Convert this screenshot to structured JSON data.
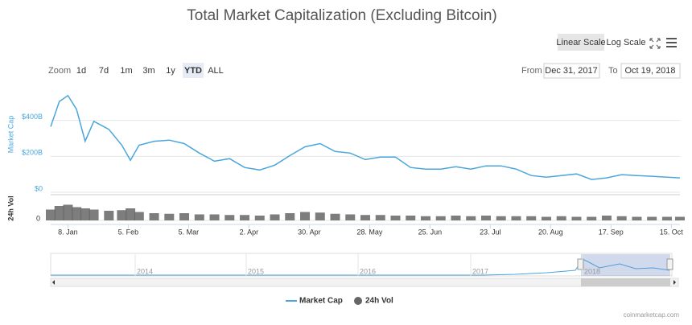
{
  "title": "Total Market Capitalization (Excluding Bitcoin)",
  "scale_buttons": {
    "items": [
      "Linear Scale",
      "Log Scale"
    ],
    "selected": 0
  },
  "zoom": {
    "label": "Zoom",
    "buttons": [
      "1d",
      "7d",
      "1m",
      "3m",
      "1y",
      "YTD",
      "ALL"
    ],
    "selected": 5
  },
  "range": {
    "from_label": "From",
    "from": "Dec 31, 2017",
    "to_label": "To",
    "to": "Oct 19, 2018"
  },
  "chart_data": {
    "type": "line",
    "x": [
      "2017-12-31",
      "2018-01-04",
      "2018-01-08",
      "2018-01-12",
      "2018-01-16",
      "2018-01-20",
      "2018-01-27",
      "2018-02-02",
      "2018-02-06",
      "2018-02-10",
      "2018-02-17",
      "2018-02-24",
      "2018-03-03",
      "2018-03-10",
      "2018-03-17",
      "2018-03-24",
      "2018-03-31",
      "2018-04-07",
      "2018-04-14",
      "2018-04-21",
      "2018-04-28",
      "2018-05-05",
      "2018-05-12",
      "2018-05-19",
      "2018-05-26",
      "2018-06-02",
      "2018-06-09",
      "2018-06-16",
      "2018-06-23",
      "2018-06-30",
      "2018-07-07",
      "2018-07-14",
      "2018-07-21",
      "2018-07-28",
      "2018-08-04",
      "2018-08-11",
      "2018-08-18",
      "2018-08-25",
      "2018-09-01",
      "2018-09-08",
      "2018-09-15",
      "2018-09-22",
      "2018-09-29",
      "2018-10-06",
      "2018-10-13",
      "2018-10-19"
    ],
    "xlim": [
      "2017-12-31",
      "2018-10-19"
    ],
    "xticks": [
      {
        "value": "2018-01-08",
        "label": "8. Jan"
      },
      {
        "value": "2018-02-05",
        "label": "5. Feb"
      },
      {
        "value": "2018-03-05",
        "label": "5. Mar"
      },
      {
        "value": "2018-04-02",
        "label": "2. Apr"
      },
      {
        "value": "2018-04-30",
        "label": "30. Apr"
      },
      {
        "value": "2018-05-28",
        "label": "28. May"
      },
      {
        "value": "2018-06-25",
        "label": "25. Jun"
      },
      {
        "value": "2018-07-23",
        "label": "23. Jul"
      },
      {
        "value": "2018-08-20",
        "label": "20. Aug"
      },
      {
        "value": "2018-09-17",
        "label": "17. Sep"
      },
      {
        "value": "2018-10-15",
        "label": "15. Oct"
      }
    ],
    "series": [
      {
        "name": "Market Cap",
        "type": "line",
        "color": "#4aa6dd",
        "axis": "y",
        "values": [
          365,
          505,
          538,
          462,
          284,
          395,
          350,
          262,
          178,
          262,
          284,
          290,
          271,
          218,
          173,
          187,
          138,
          124,
          151,
          204,
          253,
          271,
          227,
          218,
          182,
          196,
          196,
          138,
          129,
          129,
          142,
          129,
          147,
          147,
          129,
          93,
          84,
          93,
          102,
          71,
          80,
          98,
          93,
          89,
          84,
          80
        ]
      },
      {
        "name": "24h Vol",
        "type": "column",
        "color": "#666666",
        "axis": "y2",
        "values": [
          18,
          24,
          26,
          22,
          20,
          18,
          16,
          17,
          20,
          14,
          12,
          11,
          12,
          10,
          10,
          9,
          9,
          8,
          10,
          12,
          14,
          13,
          11,
          10,
          9,
          9,
          8,
          8,
          7,
          7,
          8,
          7,
          8,
          7,
          7,
          7,
          6,
          7,
          6,
          6,
          8,
          7,
          6,
          6,
          6,
          6
        ]
      }
    ],
    "ylabel": "Market Cap",
    "ylim": [
      0,
      600
    ],
    "yticks": [
      {
        "value": 0,
        "label": "$0"
      },
      {
        "value": 200,
        "label": "$200B"
      },
      {
        "value": 400,
        "label": "$400B"
      }
    ],
    "y2label": "24h Vol",
    "y2lim": [
      0,
      40
    ],
    "y2ticks": [
      0
    ],
    "grid": true
  },
  "navigator": {
    "labels": [
      "2014",
      "2015",
      "2016",
      "2017",
      "2018"
    ]
  },
  "credits": "coinmarketcap.com"
}
